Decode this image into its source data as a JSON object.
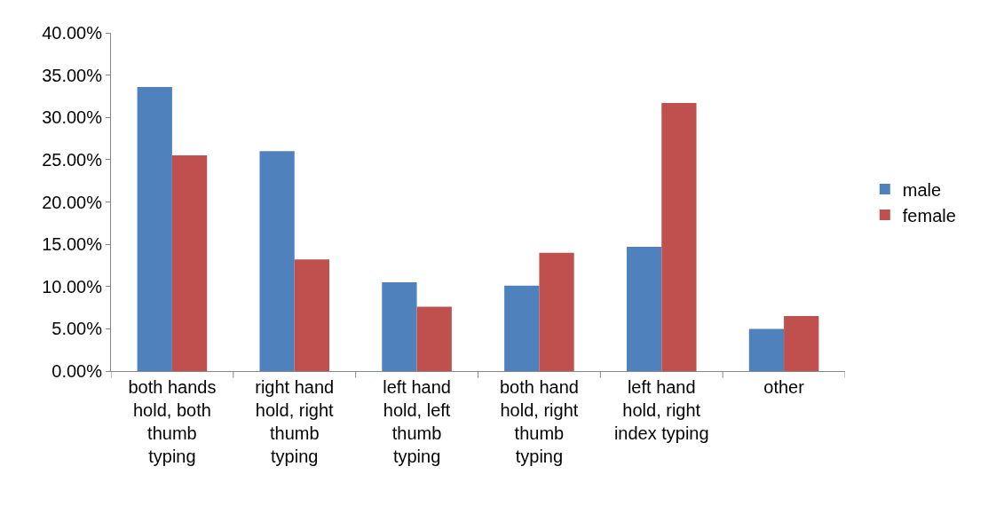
{
  "chart_data": {
    "type": "bar",
    "categories": [
      "both hands\nhold, both\nthumb\ntyping",
      "right hand\nhold, right\nthumb\ntyping",
      "left hand\nhold, left\nthumb\ntyping",
      "both hand\nhold, right\nthumb\ntyping",
      "left hand\nhold, right\nindex typing",
      "other"
    ],
    "series": [
      {
        "name": "male",
        "color": "#4f81bd",
        "values": [
          33.6,
          26.0,
          10.5,
          10.1,
          14.7,
          5.0
        ]
      },
      {
        "name": "female",
        "color": "#c0504d",
        "values": [
          25.5,
          13.2,
          7.6,
          14.0,
          31.7,
          6.5
        ]
      }
    ],
    "ylim": [
      0,
      40
    ],
    "yticks": [
      {
        "value": 0,
        "label": "0.00%"
      },
      {
        "value": 5,
        "label": "5.00%"
      },
      {
        "value": 10,
        "label": "10.00%"
      },
      {
        "value": 15,
        "label": "15.00%"
      },
      {
        "value": 20,
        "label": "20.00%"
      },
      {
        "value": 25,
        "label": "25.00%"
      },
      {
        "value": 30,
        "label": "30.00%"
      },
      {
        "value": 35,
        "label": "35.00%"
      },
      {
        "value": 40,
        "label": "40.00%"
      }
    ],
    "grid": false,
    "legend": "right"
  }
}
